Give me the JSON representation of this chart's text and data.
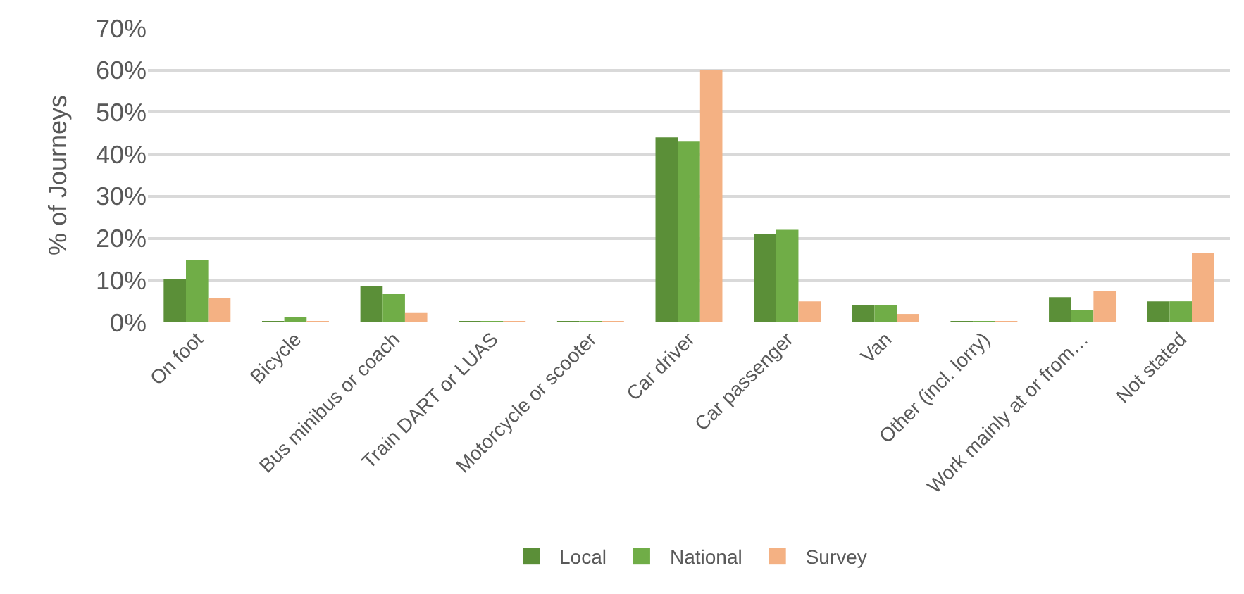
{
  "chart_data": {
    "type": "bar",
    "ylabel": "% of Journeys",
    "categories": [
      "On foot",
      "Bicycle",
      "Bus minibus or coach",
      "Train DART or LUAS",
      "Motorcycle or scooter",
      "Car driver",
      "Car passenger",
      "Van",
      "Other (incl. lorry)",
      "Work mainly at or from…",
      "Not stated"
    ],
    "series": [
      {
        "name": "Local",
        "color": "#5b8f38",
        "values": [
          10.3,
          0.3,
          8.6,
          0.2,
          0.2,
          44,
          21,
          4,
          0.3,
          6,
          5
        ]
      },
      {
        "name": "National",
        "color": "#70ad47",
        "values": [
          14.9,
          1.2,
          6.7,
          0.2,
          0.2,
          43,
          22,
          4,
          0.3,
          3,
          5
        ]
      },
      {
        "name": "Survey",
        "color": "#f4b183",
        "values": [
          5.8,
          0.1,
          2.2,
          0.2,
          0.2,
          60,
          5,
          2,
          0.1,
          7.5,
          16.5
        ]
      }
    ],
    "ylim": [
      0,
      70
    ],
    "yticks": [
      {
        "value": 0,
        "label": "0%"
      },
      {
        "value": 10,
        "label": "10%"
      },
      {
        "value": 20,
        "label": "20%"
      },
      {
        "value": 30,
        "label": "30%"
      },
      {
        "value": 40,
        "label": "40%"
      },
      {
        "value": 50,
        "label": "50%"
      },
      {
        "value": 60,
        "label": "60%"
      },
      {
        "value": 70,
        "label": "70%"
      }
    ],
    "grid": "y",
    "legend": "bottom"
  }
}
